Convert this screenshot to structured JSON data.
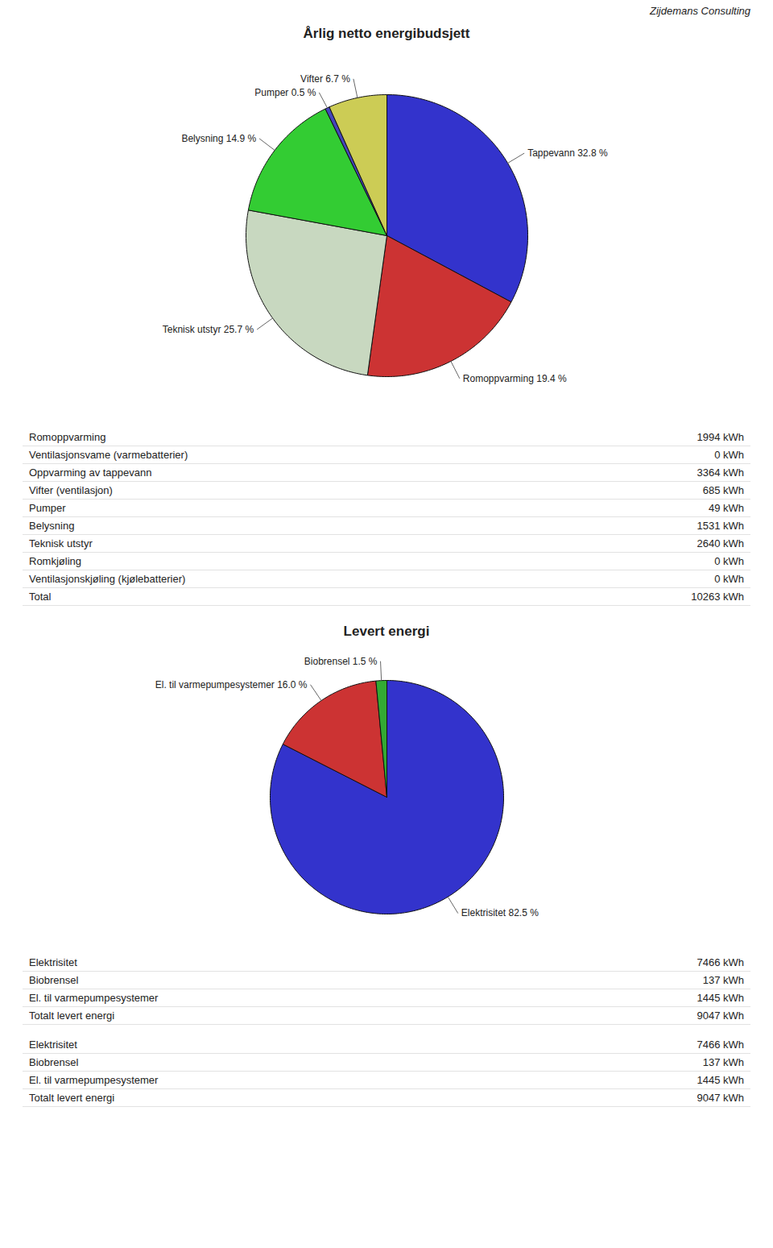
{
  "chart_data": [
    {
      "type": "pie",
      "title": "Årlig netto energibudsjett",
      "categories": [
        "Tappevann 32.8 %",
        "Romoppvarming 19.4 %",
        "Teknisk utstyr 25.7 %",
        "Belysning 14.9 %",
        "Pumper 0.5 %",
        "Vifter 6.7 %"
      ],
      "values": [
        32.8,
        19.4,
        25.7,
        14.9,
        0.5,
        6.7
      ],
      "colors": [
        "#3333CC",
        "#CC3333",
        "#C8D8C0",
        "#33CC33",
        "#4444BB",
        "#CCCC55"
      ],
      "data_labels": true,
      "annotations": [
        "Zijdemans Consulting",
        [
          "Romoppvarming",
          "1994 kWh"
        ],
        [
          "Ventilasjonsvame (varmebatterier)",
          "0 kWh"
        ],
        [
          "Oppvarming av tappevann",
          "3364 kWh"
        ],
        [
          "Vifter (ventilasjon)",
          "685 kWh"
        ],
        [
          "Pumper",
          "49 kWh"
        ],
        [
          "Belysning",
          "1531 kWh"
        ],
        [
          "Teknisk utstyr",
          "2640 kWh"
        ],
        [
          "Romkjøling",
          "0 kWh"
        ],
        [
          "Ventilasjonskjøling (kjølebatterier)",
          "0 kWh"
        ],
        [
          "Total",
          "10263 kWh"
        ]
      ]
    },
    {
      "type": "pie",
      "title": "Levert energi",
      "categories": [
        "Elektrisitet 82.5 %",
        "El. til varmepumpesystemer 16.0 %",
        "Biobrensel 1.5 %"
      ],
      "values": [
        82.5,
        16.0,
        1.5
      ],
      "colors": [
        "#3333CC",
        "#CC3333",
        "#33AA33"
      ],
      "data_labels": true,
      "annotations": [
        [
          "Elektrisitet",
          "7466 kWh"
        ],
        [
          "Biobrensel",
          "137 kWh"
        ],
        [
          "El. til varmepumpesystemer",
          "1445 kWh"
        ],
        [
          "Totalt levert energi",
          "9047 kWh"
        ]
      ]
    }
  ]
}
